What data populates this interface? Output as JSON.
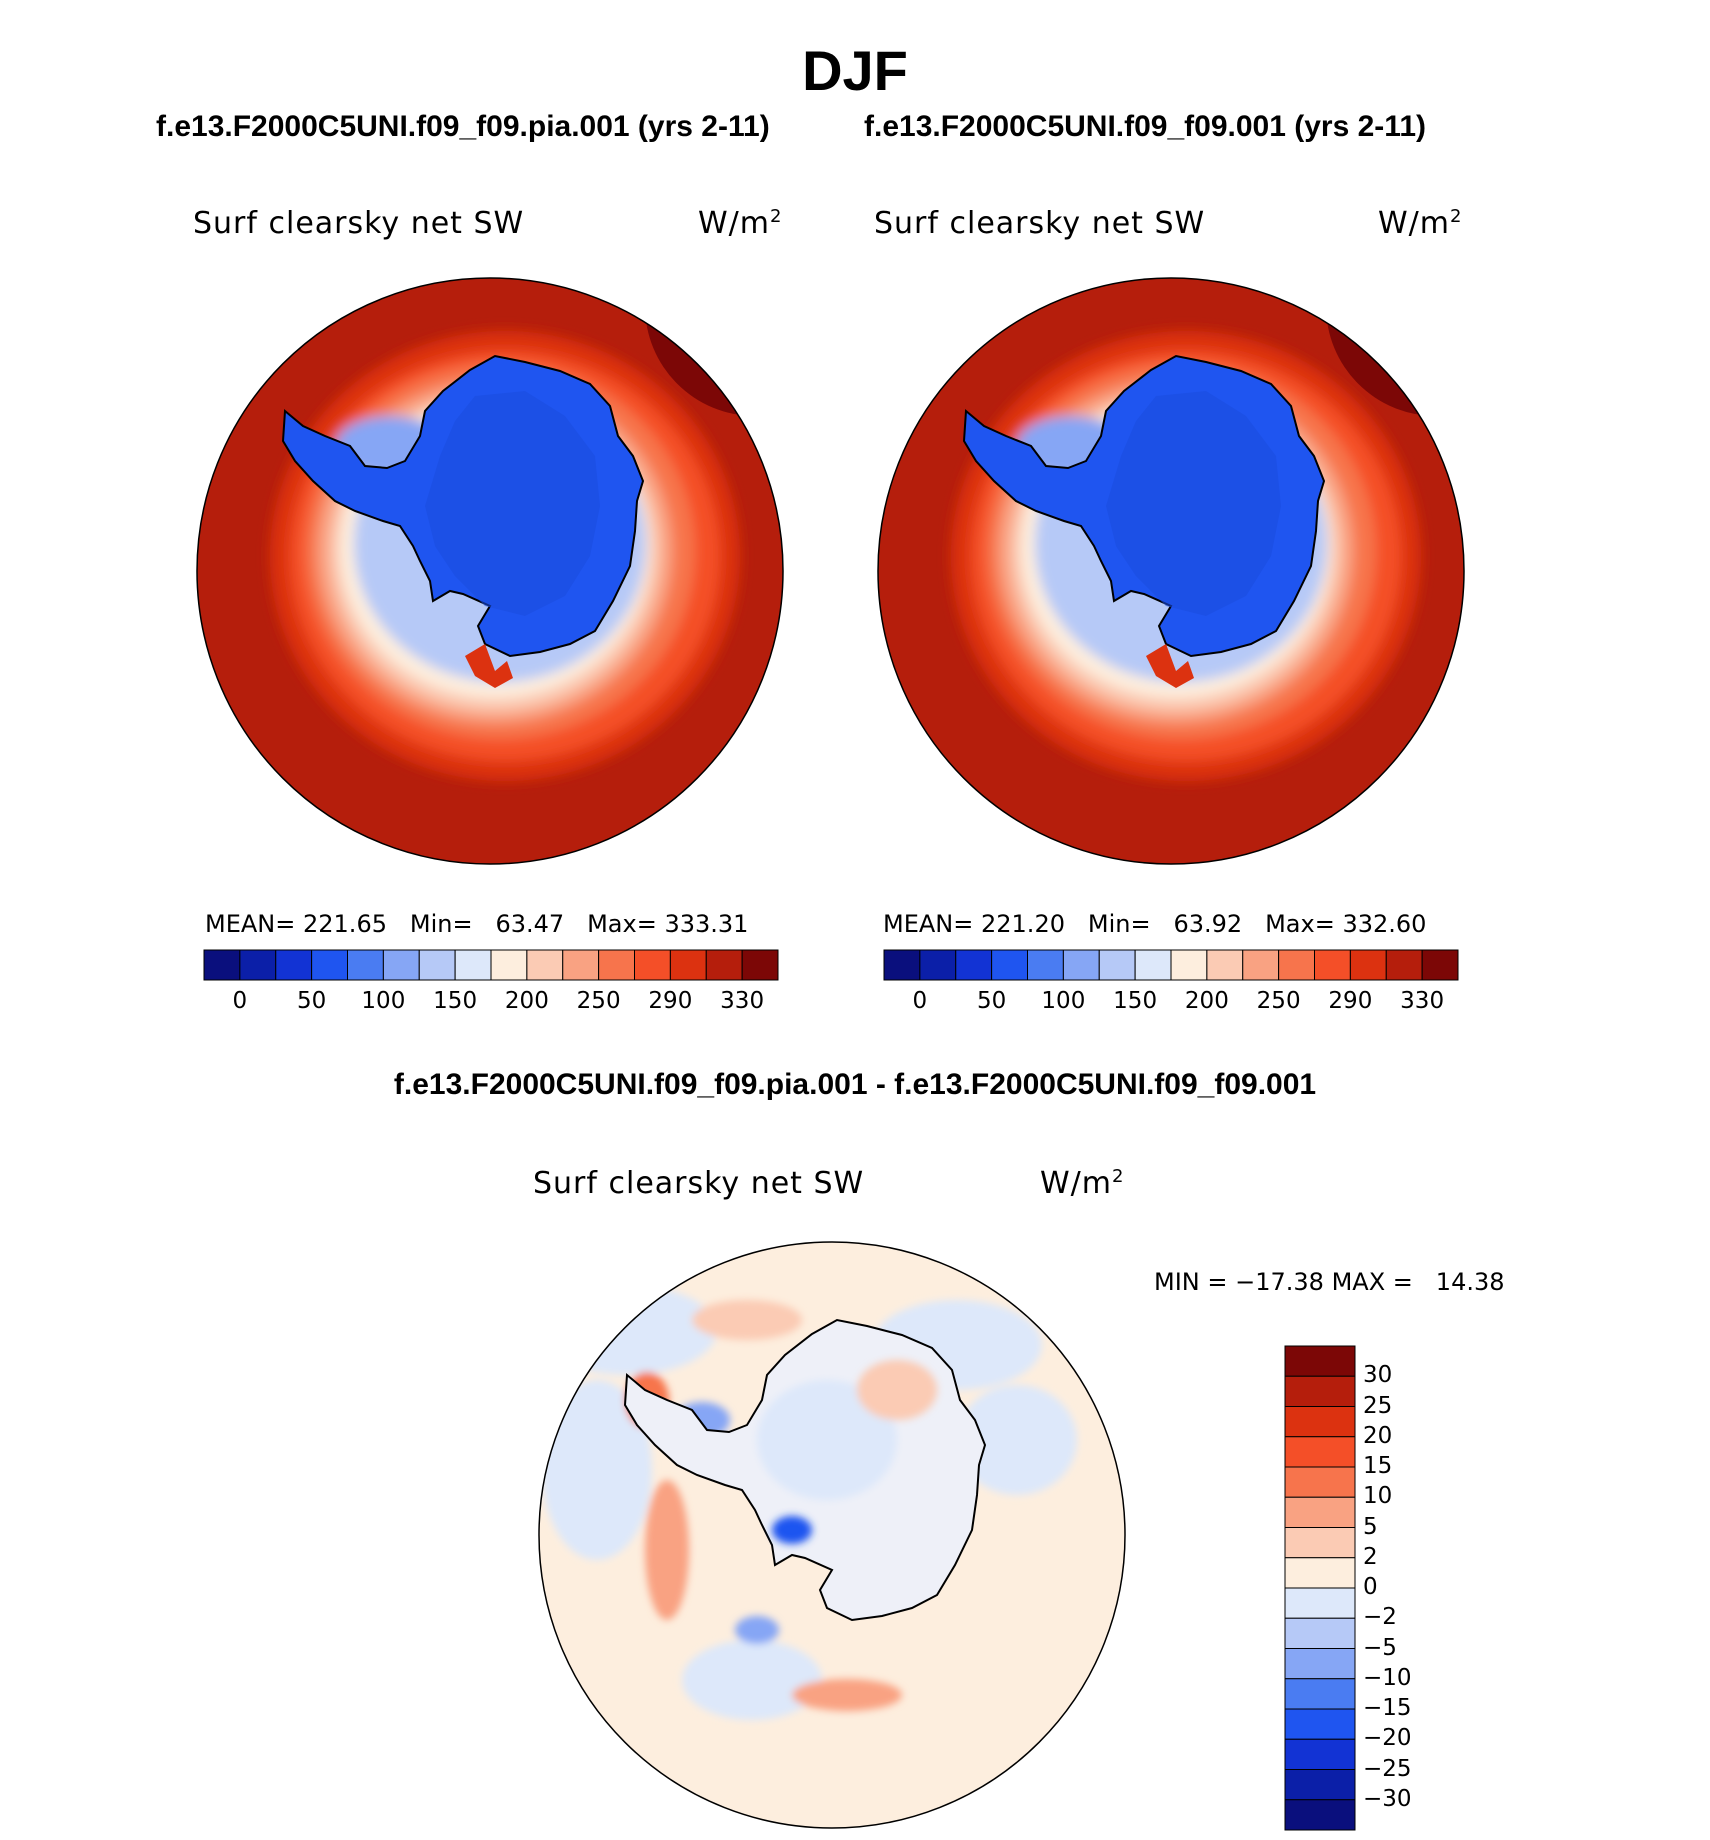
{
  "figure": {
    "season": "DJF",
    "left_case_title": "f.e13.F2000C5UNI.f09_f09.pia.001 (yrs 2-11)",
    "right_case_title": "f.e13.F2000C5UNI.f09_f09.001 (yrs 2-11)",
    "diff_title": "f.e13.F2000C5UNI.f09_f09.pia.001 - f.e13.F2000C5UNI.f09_f09.001"
  },
  "chart_data": [
    {
      "type": "heatmap",
      "projection": "south-polar-stereographic",
      "variable": "Surf clearsky net SW",
      "units_base": "W/m",
      "units_exp": "2",
      "case": "f.e13.F2000C5UNI.f09_f09.pia.001 (yrs 2-11)",
      "stats": {
        "mean_label": "MEAN=",
        "mean": "221.65",
        "min_label": "Min=",
        "min": "63.47",
        "max_label": "Max=",
        "max": "333.31"
      },
      "colorbar": {
        "orientation": "horizontal",
        "colors": [
          "#0a0f7d",
          "#0b1fa8",
          "#1233d4",
          "#1f55f0",
          "#4a7cf2",
          "#86a6f5",
          "#b6c9f7",
          "#dde8fa",
          "#fdeede",
          "#fbcbb4",
          "#f9a282",
          "#f7744c",
          "#f44f28",
          "#dc3210",
          "#b51e0c",
          "#7c0706"
        ],
        "labels": [
          "0",
          "50",
          "100",
          "150",
          "200",
          "250",
          "290",
          "330"
        ]
      }
    },
    {
      "type": "heatmap",
      "projection": "south-polar-stereographic",
      "variable": "Surf clearsky net SW",
      "units_base": "W/m",
      "units_exp": "2",
      "case": "f.e13.F2000C5UNI.f09_f09.001 (yrs 2-11)",
      "stats": {
        "mean_label": "MEAN=",
        "mean": "221.20",
        "min_label": "Min=",
        "min": "63.92",
        "max_label": "Max=",
        "max": "332.60"
      },
      "colorbar": {
        "orientation": "horizontal",
        "colors": [
          "#0a0f7d",
          "#0b1fa8",
          "#1233d4",
          "#1f55f0",
          "#4a7cf2",
          "#86a6f5",
          "#b6c9f7",
          "#dde8fa",
          "#fdeede",
          "#fbcbb4",
          "#f9a282",
          "#f7744c",
          "#f44f28",
          "#dc3210",
          "#b51e0c",
          "#7c0706"
        ],
        "labels": [
          "0",
          "50",
          "100",
          "150",
          "200",
          "250",
          "290",
          "330"
        ]
      }
    },
    {
      "type": "heatmap",
      "projection": "south-polar-stereographic",
      "variable": "Surf clearsky net SW",
      "units_base": "W/m",
      "units_exp": "2",
      "case": "difference",
      "stats": {
        "min_label": "MIN =",
        "min": "−17.38",
        "max_label": "MAX =",
        "max": "14.38"
      },
      "colorbar": {
        "orientation": "vertical",
        "colors_top_to_bottom": [
          "#7c0706",
          "#b51e0c",
          "#dc3210",
          "#f44f28",
          "#f7744c",
          "#f9a282",
          "#fbcbb4",
          "#fdeede",
          "#dde8fa",
          "#b6c9f7",
          "#86a6f5",
          "#4a7cf2",
          "#1f55f0",
          "#1233d4",
          "#0b1fa8",
          "#0a0f7d"
        ],
        "labels": [
          "30",
          "25",
          "20",
          "15",
          "10",
          "5",
          "2",
          "0",
          "−2",
          "−5",
          "−10",
          "−15",
          "−20",
          "−25",
          "−30"
        ]
      }
    }
  ]
}
